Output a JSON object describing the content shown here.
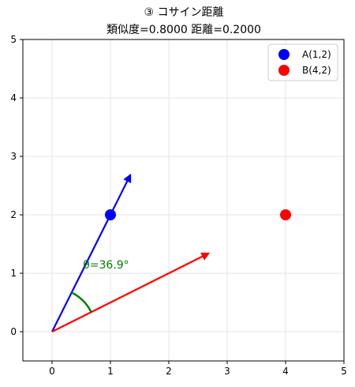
{
  "chart_data": {
    "type": "scatter",
    "title_line1": "③ コサイン距離",
    "title_line2": "類似度=0.8000  距離=0.2000",
    "xlim": [
      -0.5,
      5
    ],
    "ylim": [
      -0.5,
      5
    ],
    "x_ticks": [
      0,
      1,
      2,
      3,
      4,
      5
    ],
    "y_ticks": [
      0,
      1,
      2,
      3,
      4,
      5
    ],
    "grid": true,
    "legend_position": "top-right",
    "points": [
      {
        "label": "A(1,2)",
        "x": 1,
        "y": 2,
        "color": "#0000ff"
      },
      {
        "label": "B(4,2)",
        "x": 4,
        "y": 2,
        "color": "#ff0000"
      }
    ],
    "vectors": [
      {
        "name": "A-direction",
        "from": [
          0,
          0
        ],
        "to": [
          1.34,
          2.68
        ],
        "color": "#0000ff"
      },
      {
        "name": "B-direction",
        "from": [
          0,
          0
        ],
        "to": [
          2.68,
          1.34
        ],
        "color": "#ff0000"
      }
    ],
    "angle_arc": {
      "radius": 0.75,
      "start_deg": 26.57,
      "end_deg": 63.43,
      "color": "#008000"
    },
    "angle_label": {
      "text": "θ=36.9°",
      "x": 0.53,
      "y": 1.08,
      "color": "#008000"
    }
  }
}
